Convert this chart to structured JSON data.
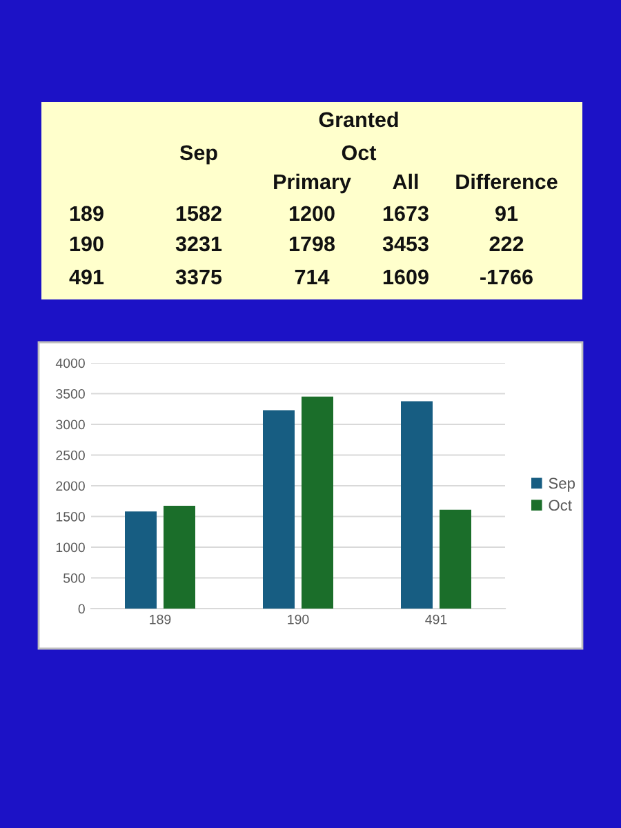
{
  "chart_data": [
    {
      "type": "other",
      "annotations": [
        "Granted",
        "Oct"
      ],
      "categories": [
        "189",
        "190",
        "491"
      ],
      "series": [
        {
          "name": "Sep",
          "values": [
            1582,
            3231,
            3375
          ]
        },
        {
          "name": "Primary",
          "values": [
            1200,
            1798,
            714
          ]
        },
        {
          "name": "All",
          "values": [
            1673,
            3453,
            1609
          ]
        },
        {
          "name": "Difference",
          "values": [
            91,
            222,
            -1766
          ]
        }
      ],
      "data_labels": true
    },
    {
      "type": "bar",
      "categories": [
        "189",
        "190",
        "491"
      ],
      "series": [
        {
          "name": "Sep",
          "color": "#175d82",
          "values": [
            1582,
            3231,
            3375
          ]
        },
        {
          "name": "Oct",
          "color": "#1b6e2a",
          "values": [
            1673,
            3453,
            1609
          ]
        }
      ],
      "ylim": [
        0,
        4000
      ],
      "yticks": [
        0,
        500,
        1000,
        1500,
        2000,
        2500,
        3000,
        3500,
        4000
      ],
      "grid": "y",
      "legend": "right"
    }
  ]
}
